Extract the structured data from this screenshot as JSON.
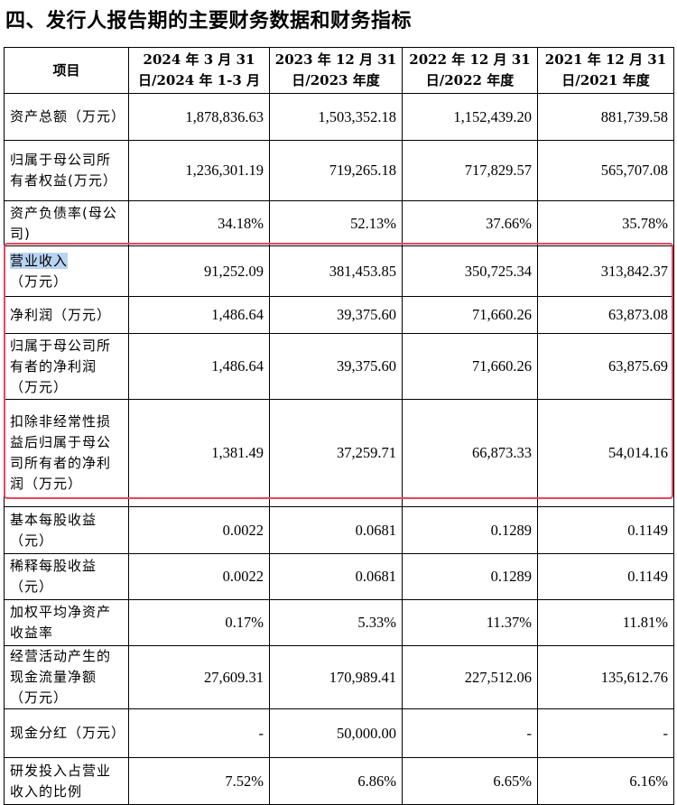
{
  "heading": "四、发行人报告期的主要财务数据和财务指标",
  "columns": [
    "项目",
    "2024 年 3 月 31 日/2024 年 1-3 月",
    "2023 年 12 月 31 日/2023 年度",
    "2022 年 12 月 31 日/2022 年度",
    "2021 年 12 月 31 日/2021 年度"
  ],
  "rows": [
    {
      "label_hl": "",
      "label": "资产总额（万元）",
      "values": [
        "1,878,836.63",
        "1,503,352.18",
        "1,152,439.20",
        "881,739.58"
      ]
    },
    {
      "label_hl": "",
      "label": "归属于母公司所有者权益(万元）",
      "values": [
        "1,236,301.19",
        "719,265.18",
        "717,829.57",
        "565,707.08"
      ]
    },
    {
      "label_hl": "",
      "label": "资产负债率(母公司)",
      "values": [
        "34.18%",
        "52.13%",
        "37.66%",
        "35.78%"
      ]
    },
    {
      "label_hl": "营业收入",
      "label": "（万元）",
      "values": [
        "91,252.09",
        "381,453.85",
        "350,725.34",
        "313,842.37"
      ]
    },
    {
      "label_hl": "",
      "label": "净利润（万元）",
      "values": [
        "1,486.64",
        "39,375.60",
        "71,660.26",
        "63,873.08"
      ]
    },
    {
      "label_hl": "",
      "label": "归属于母公司所有者的净利润（万元）",
      "values": [
        "1,486.64",
        "39,375.60",
        "71,660.26",
        "63,875.69"
      ]
    },
    {
      "label_hl": "",
      "label": "扣除非经常性损益后归属于母公司所有者的净利润（万元）",
      "values": [
        "1,381.49",
        "37,259.71",
        "66,873.33",
        "54,014.16"
      ]
    },
    {
      "label_hl": "",
      "label": "基本每股收益（元）",
      "values": [
        "0.0022",
        "0.0681",
        "0.1289",
        "0.1149"
      ]
    },
    {
      "label_hl": "",
      "label": "稀释每股收益（元）",
      "values": [
        "0.0022",
        "0.0681",
        "0.1289",
        "0.1149"
      ]
    },
    {
      "label_hl": "",
      "label": "加权平均净资产收益率",
      "values": [
        "0.17%",
        "5.33%",
        "11.37%",
        "11.81%"
      ]
    },
    {
      "label_hl": "",
      "label": "经营活动产生的现金流量净额（万元）",
      "values": [
        "27,609.31",
        "170,989.41",
        "227,512.06",
        "135,612.76"
      ]
    },
    {
      "label_hl": "",
      "label": "现金分红（万元）",
      "values": [
        "-",
        "50,000.00",
        "-",
        "-"
      ]
    },
    {
      "label_hl": "",
      "label": "研发投入占营业收入的比例",
      "values": [
        "7.52%",
        "6.86%",
        "6.65%",
        "6.16%"
      ]
    }
  ],
  "highlight_color": "#e8455c"
}
